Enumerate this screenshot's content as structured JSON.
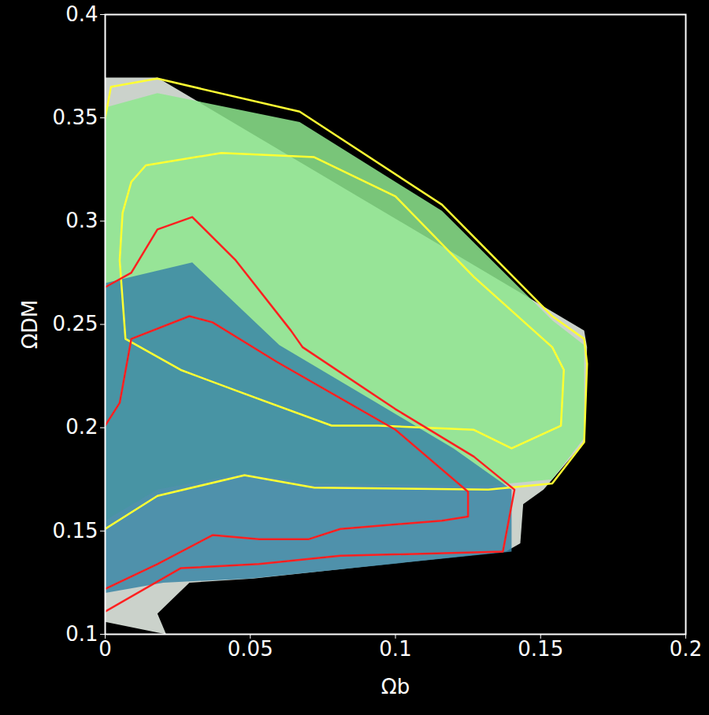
{
  "chart_data": {
    "type": "contour",
    "xlabel": "Ωb",
    "ylabel": "ΩDM",
    "xlim": [
      0,
      0.2
    ],
    "ylim": [
      0.1,
      0.4
    ],
    "xticks": [
      0,
      0.05,
      0.1,
      0.15,
      0.2
    ],
    "yticks": [
      0.1,
      0.15,
      0.2,
      0.25,
      0.3,
      0.35,
      0.4
    ],
    "series": [
      {
        "type": "fill",
        "color": "#eef7ee",
        "x": [
          0,
          0.018,
          0.165,
          0.166,
          0.165,
          0.151,
          0.144,
          0.143,
          0.138,
          0.051,
          0.029,
          0.018,
          0.021,
          0
        ],
        "y": [
          0.3695,
          0.3695,
          0.247,
          0.239,
          0.193,
          0.17,
          0.163,
          0.144,
          0.14,
          0.127,
          0.125,
          0.11,
          0.1,
          0.106
        ]
      },
      {
        "type": "fill",
        "color": "#8ee88e",
        "x": [
          0,
          0.018,
          0.067,
          0.116,
          0.154,
          0.165,
          0.165,
          0.154,
          0.132,
          0.072,
          0.048,
          0.018,
          0
        ],
        "y": [
          0.355,
          0.362,
          0.348,
          0.305,
          0.252,
          0.24,
          0.195,
          0.175,
          0.172,
          0.173,
          0.178,
          0.17,
          0.155
        ]
      },
      {
        "type": "fill",
        "color": "#3a86a6",
        "x": [
          0,
          0.03,
          0.06,
          0.12,
          0.14,
          0.14,
          0.05,
          0.02,
          0
        ],
        "y": [
          0.27,
          0.28,
          0.24,
          0.19,
          0.17,
          0.14,
          0.127,
          0.125,
          0.12
        ]
      },
      {
        "type": "line",
        "color": "#ffff33",
        "x": [
          0,
          0.002,
          0.018,
          0.067,
          0.116,
          0.154,
          0.165,
          0.166,
          0.165,
          0.154,
          0.132,
          0.072,
          0.048,
          0.018,
          0
        ],
        "y": [
          0.35,
          0.365,
          0.369,
          0.353,
          0.308,
          0.254,
          0.243,
          0.231,
          0.193,
          0.173,
          0.17,
          0.171,
          0.177,
          0.167,
          0.151
        ]
      },
      {
        "type": "line",
        "color": "#ffff33",
        "x": [
          0.006,
          0.009,
          0.014,
          0.04,
          0.072,
          0.1,
          0.127,
          0.154,
          0.158,
          0.157,
          0.14,
          0.127,
          0.094,
          0.078,
          0.045,
          0.026,
          0.007,
          0.005,
          0.006
        ],
        "y": [
          0.304,
          0.319,
          0.327,
          0.333,
          0.331,
          0.312,
          0.273,
          0.239,
          0.228,
          0.201,
          0.19,
          0.199,
          0.201,
          0.201,
          0.218,
          0.228,
          0.243,
          0.281,
          0.304
        ]
      },
      {
        "type": "line",
        "color": "#ff2020",
        "x": [
          0,
          0.009,
          0.018,
          0.03,
          0.045,
          0.064,
          0.068,
          0.1,
          0.127,
          0.141,
          0.137,
          0.081,
          0.053,
          0.026,
          0
        ],
        "y": [
          0.268,
          0.275,
          0.296,
          0.302,
          0.281,
          0.247,
          0.239,
          0.209,
          0.186,
          0.17,
          0.14,
          0.138,
          0.134,
          0.132,
          0.111
        ]
      },
      {
        "type": "line",
        "color": "#ff2020",
        "x": [
          0,
          0.005,
          0.009,
          0.029,
          0.037,
          0.059,
          0.1,
          0.125,
          0.125,
          0.116,
          0.081,
          0.07,
          0.053,
          0.037,
          0.018,
          0
        ],
        "y": [
          0.201,
          0.212,
          0.243,
          0.254,
          0.251,
          0.232,
          0.199,
          0.169,
          0.157,
          0.155,
          0.151,
          0.146,
          0.146,
          0.148,
          0.134,
          0.122
        ]
      }
    ]
  }
}
